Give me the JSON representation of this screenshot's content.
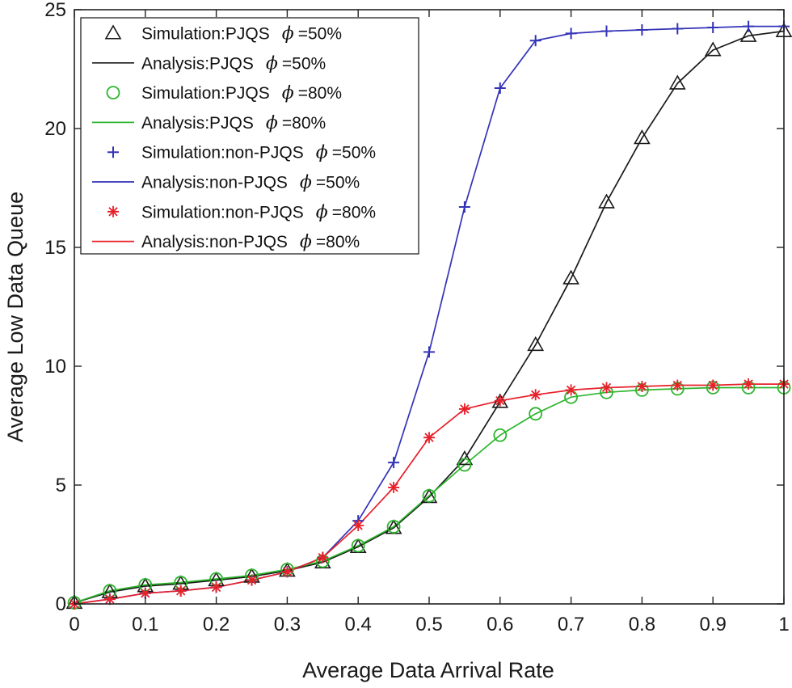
{
  "chart_data": {
    "type": "line",
    "title": "",
    "xlabel": "Average Data Arrival Rate",
    "ylabel": "Average Low Data Queue",
    "xlim": [
      0,
      1
    ],
    "ylim": [
      0,
      25
    ],
    "xticks": [
      0,
      0.1,
      0.2,
      0.3,
      0.4,
      0.5,
      0.6,
      0.7,
      0.8,
      0.9,
      1
    ],
    "xtick_labels": [
      "0",
      "0.1",
      "0.2",
      "0.3",
      "0.4",
      "0.5",
      "0.6",
      "0.7",
      "0.8",
      "0.9",
      "1"
    ],
    "yticks": [
      0,
      5,
      10,
      15,
      20,
      25
    ],
    "ytick_labels": [
      "0",
      "5",
      "10",
      "15",
      "20",
      "25"
    ],
    "grid": false,
    "legend_position": "top-left",
    "x": [
      0,
      0.05,
      0.1,
      0.15,
      0.2,
      0.25,
      0.3,
      0.35,
      0.4,
      0.45,
      0.5,
      0.55,
      0.6,
      0.65,
      0.7,
      0.75,
      0.8,
      0.85,
      0.9,
      0.95,
      1
    ],
    "series": [
      {
        "name": "Simulation:PJQS",
        "phi_symbol": "ϕ",
        "phi_value": "=50%",
        "kind": "marker",
        "marker": "triangle",
        "color": "#1a1a1a",
        "values": [
          0.05,
          0.5,
          0.75,
          0.85,
          1.0,
          1.15,
          1.4,
          1.75,
          2.4,
          3.2,
          4.5,
          6.1,
          8.5,
          10.9,
          13.7,
          16.9,
          19.6,
          21.9,
          23.3,
          23.9,
          24.1
        ]
      },
      {
        "name": "Analysis:PJQS",
        "phi_symbol": "ϕ",
        "phi_value": "=50%",
        "kind": "line",
        "color": "#1a1a1a",
        "values": [
          0.05,
          0.5,
          0.75,
          0.85,
          1.0,
          1.15,
          1.4,
          1.75,
          2.4,
          3.2,
          4.5,
          6.1,
          8.5,
          10.9,
          13.7,
          16.9,
          19.6,
          21.9,
          23.3,
          23.9,
          24.1
        ]
      },
      {
        "name": "Simulation:PJQS",
        "phi_symbol": "ϕ",
        "phi_value": "=80%",
        "kind": "marker",
        "marker": "circle",
        "color": "#2db52d",
        "values": [
          0.05,
          0.55,
          0.8,
          0.9,
          1.05,
          1.2,
          1.45,
          1.8,
          2.45,
          3.25,
          4.55,
          5.85,
          7.1,
          8.0,
          8.7,
          8.9,
          9.0,
          9.05,
          9.1,
          9.1,
          9.1
        ]
      },
      {
        "name": "Analysis:PJQS",
        "phi_symbol": "ϕ",
        "phi_value": "=80%",
        "kind": "line",
        "color": "#2db52d",
        "values": [
          0.05,
          0.55,
          0.8,
          0.9,
          1.05,
          1.2,
          1.45,
          1.8,
          2.45,
          3.25,
          4.55,
          5.85,
          7.1,
          8.0,
          8.7,
          8.9,
          9.0,
          9.05,
          9.1,
          9.1,
          9.1
        ]
      },
      {
        "name": "Simulation:non-PJQS",
        "phi_symbol": "ϕ",
        "phi_value": "=50%",
        "kind": "marker",
        "marker": "plus",
        "color": "#3333b8",
        "values": [
          0.0,
          0.2,
          0.45,
          0.55,
          0.7,
          1.0,
          1.35,
          1.95,
          3.5,
          5.95,
          10.6,
          16.7,
          21.7,
          23.7,
          24.0,
          24.1,
          24.15,
          24.2,
          24.25,
          24.3,
          24.3
        ]
      },
      {
        "name": "Analysis:non-PJQS",
        "phi_symbol": "ϕ",
        "phi_value": "=50%",
        "kind": "line",
        "color": "#3333b8",
        "values": [
          0.0,
          0.2,
          0.45,
          0.55,
          0.7,
          1.0,
          1.35,
          1.95,
          3.5,
          5.95,
          10.6,
          16.7,
          21.7,
          23.7,
          24.0,
          24.1,
          24.15,
          24.2,
          24.25,
          24.3,
          24.3
        ]
      },
      {
        "name": "Simulation:non-PJQS",
        "phi_symbol": "ϕ",
        "phi_value": "=80%",
        "kind": "marker",
        "marker": "asterisk",
        "color": "#e8202a",
        "values": [
          0.0,
          0.2,
          0.45,
          0.55,
          0.7,
          1.0,
          1.35,
          1.95,
          3.3,
          4.9,
          7.0,
          8.2,
          8.55,
          8.8,
          9.0,
          9.1,
          9.15,
          9.2,
          9.2,
          9.25,
          9.25
        ]
      },
      {
        "name": "Analysis:non-PJQS",
        "phi_symbol": "ϕ",
        "phi_value": "=80%",
        "kind": "line",
        "color": "#e8202a",
        "values": [
          0.0,
          0.2,
          0.45,
          0.55,
          0.7,
          1.0,
          1.35,
          1.95,
          3.3,
          4.9,
          7.0,
          8.2,
          8.55,
          8.8,
          9.0,
          9.1,
          9.15,
          9.2,
          9.2,
          9.25,
          9.25
        ]
      }
    ]
  }
}
